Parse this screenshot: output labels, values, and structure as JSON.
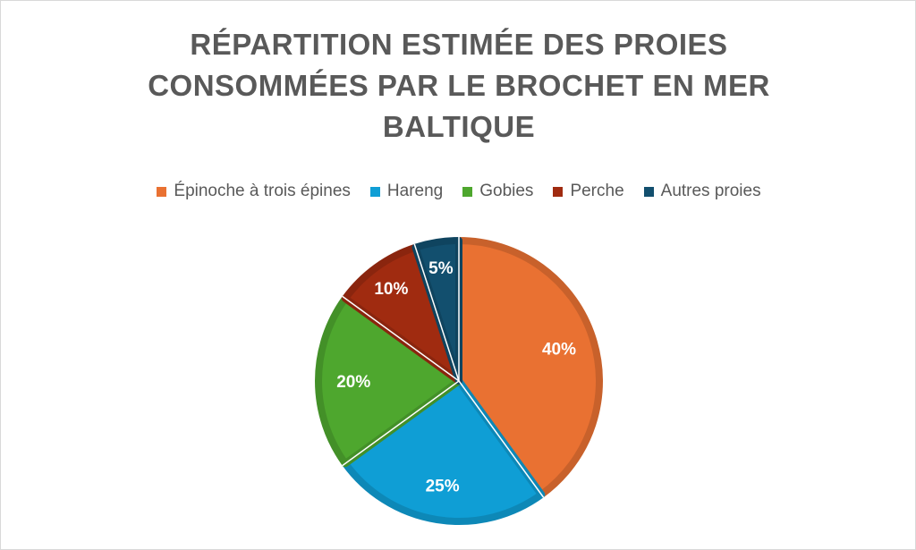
{
  "chart_data": {
    "type": "pie",
    "title": "RÉPARTITION ESTIMÉE DES PROIES CONSOMMÉES PAR LE BROCHET EN MER BALTIQUE",
    "legend_position": "top",
    "slices": [
      {
        "name": "Épinoche à trois épines",
        "value": 40,
        "label": "40%",
        "color": "#E97132"
      },
      {
        "name": "Hareng",
        "value": 25,
        "label": "25%",
        "color": "#0F9ED5"
      },
      {
        "name": "Gobies",
        "value": 20,
        "label": "20%",
        "color": "#4EA72E"
      },
      {
        "name": "Perche",
        "value": 10,
        "label": "10%",
        "color": "#A02B10"
      },
      {
        "name": "Autres proies",
        "value": 5,
        "label": "5%",
        "color": "#124F6E"
      }
    ]
  }
}
